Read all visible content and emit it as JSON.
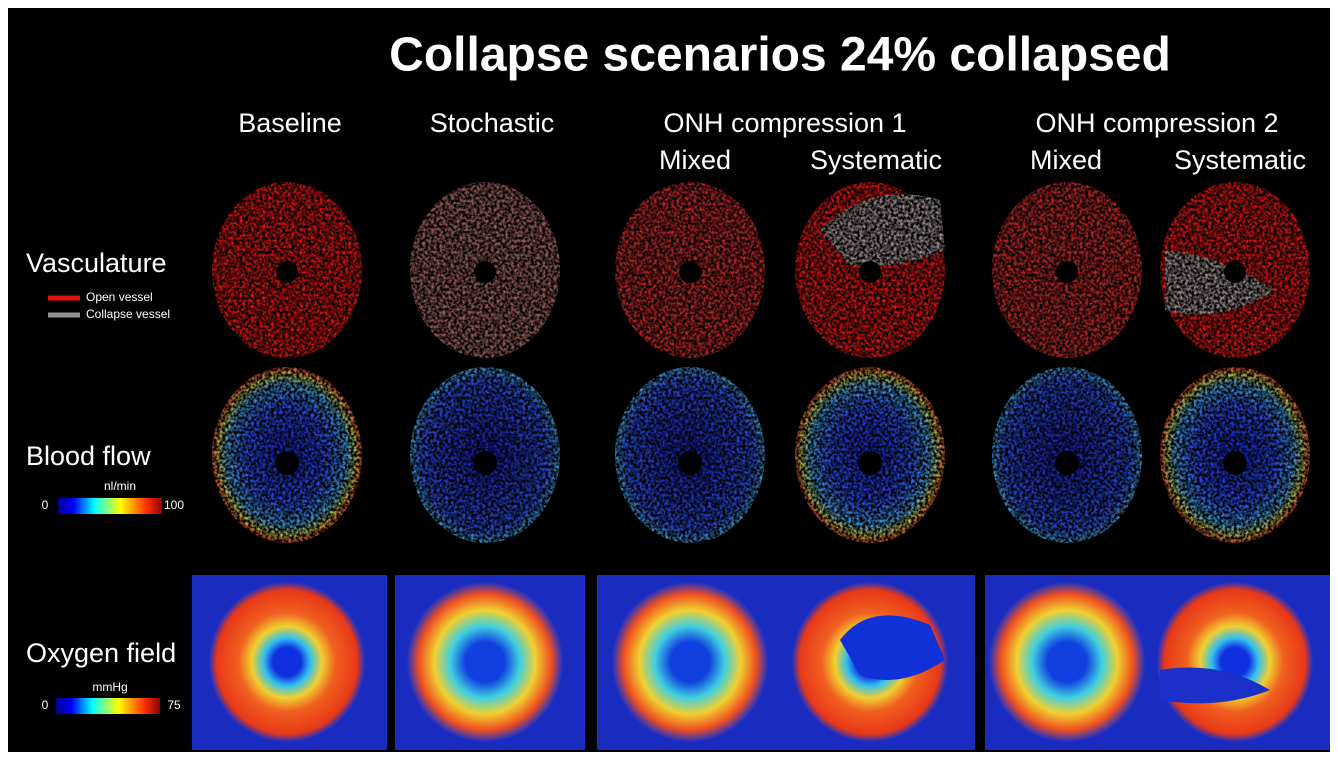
{
  "title": "Collapse scenarios 24% collapsed",
  "columns": {
    "baseline": "Baseline",
    "stochastic": "Stochastic",
    "onh_compression_1": {
      "title": "ONH compression 1",
      "subcolumns": [
        "Mixed",
        "Systematic"
      ]
    },
    "onh_compression_2": {
      "title": "ONH compression 2",
      "subcolumns": [
        "Mixed",
        "Systematic"
      ]
    }
  },
  "rows": [
    {
      "label": "Vasculature",
      "legend": [
        "Open vessel",
        "Collapse vessel"
      ]
    },
    {
      "label": "Blood flow",
      "colorbar": {
        "unit": "nl/min",
        "min": "0",
        "max": "100"
      }
    },
    {
      "label": "Oxygen field",
      "colorbar": {
        "unit": "mmHg",
        "min": "0",
        "max": "75"
      }
    }
  ]
}
